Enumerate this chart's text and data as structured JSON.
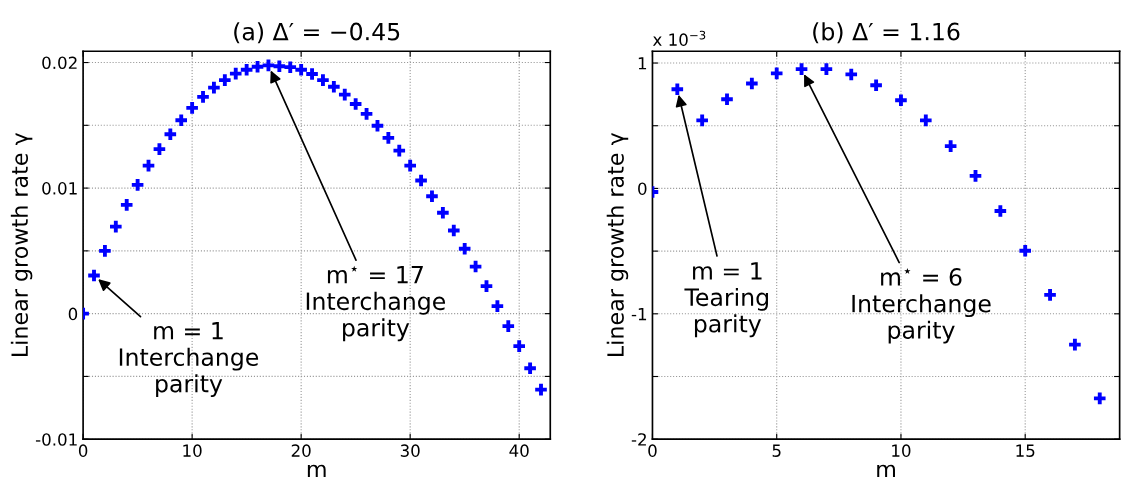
{
  "chart_data": [
    {
      "type": "scatter",
      "title": "(a) Δ′ = −0.45",
      "xlabel": "m",
      "ylabel": "Linear growth rate γ",
      "marker": "cross",
      "grid": true,
      "x": [
        0,
        1,
        2,
        3,
        4,
        5,
        6,
        7,
        8,
        9,
        10,
        11,
        12,
        13,
        14,
        15,
        16,
        17,
        18,
        19,
        20,
        21,
        22,
        23,
        24,
        25,
        26,
        27,
        28,
        29,
        30,
        31,
        32,
        33,
        34,
        35,
        36,
        37,
        38,
        39,
        40,
        41,
        42
      ],
      "series": [
        {
          "color": "#0000ff",
          "values": [
            0,
            0.00304,
            0.005,
            0.00693,
            0.00866,
            0.01026,
            0.01179,
            0.0131,
            0.01429,
            0.0154,
            0.01639,
            0.01727,
            0.018,
            0.0186,
            0.01912,
            0.01943,
            0.01966,
            0.01977,
            0.0197,
            0.01963,
            0.01943,
            0.01909,
            0.0186,
            0.01807,
            0.01744,
            0.0167,
            0.01591,
            0.01497,
            0.014,
            0.01298,
            0.01179,
            0.0106,
            0.00935,
            0.00804,
            0.00662,
            0.00517,
            0.00375,
            0.00219,
            0.0006,
            -0.00099,
            -0.00259,
            -0.00435,
            -0.00605
          ]
        }
      ],
      "xlim": [
        0,
        42.85
      ],
      "xticks": [
        0,
        10,
        20,
        30,
        40
      ],
      "ylim": [
        -0.01,
        0.0209
      ],
      "yticks": [
        -0.01,
        {
          "value": -0.005,
          "label": null
        },
        0,
        {
          "value": 0.005,
          "label": null
        },
        0.01,
        {
          "value": 0.015,
          "label": null
        },
        0.02
      ],
      "annotations": [
        {
          "text": "m = 1\nInterchange\nparity",
          "x": 1,
          "y": 0.00304
        },
        {
          "text": "m$^{⋆}$ = 17\nInterchange\nparity",
          "x": 17,
          "y": 0.01977
        }
      ]
    },
    {
      "type": "scatter",
      "title": "(b) Δ′ = 1.16",
      "xlabel": "m",
      "ylabel": "Linear growth rate γ",
      "marker": "cross",
      "grid": true,
      "x": [
        0,
        1,
        2,
        3,
        4,
        5,
        6,
        7,
        8,
        9,
        10,
        11,
        12,
        13,
        14,
        15,
        16,
        17,
        18
      ],
      "series": [
        {
          "color": "#0000ff",
          "values": [
            -0.029,
            0.791,
            0.543,
            0.711,
            0.837,
            0.917,
            0.951,
            0.951,
            0.909,
            0.823,
            0.703,
            0.543,
            0.337,
            0.1,
            -0.18,
            -0.497,
            -0.849,
            -1.246,
            -1.674
          ]
        }
      ],
      "xlim": [
        0,
        18.8
      ],
      "xticks": [
        0,
        5,
        10,
        15
      ],
      "ylim": [
        -2,
        1.094
      ],
      "yticks": [
        -2,
        {
          "value": -1.5,
          "label": null
        },
        -1,
        {
          "value": -0.5,
          "label": null
        },
        0,
        {
          "value": 0.5,
          "label": null
        },
        1
      ],
      "annotations": [
        "x 10$^{−3}$",
        {
          "text": "m = 1\nTearing\nparity",
          "x": 1,
          "y": 0.791
        },
        {
          "text": "m$^{⋆}$ = 6\nInterchange\nparity",
          "x": 6,
          "y": 0.951
        }
      ]
    }
  ]
}
